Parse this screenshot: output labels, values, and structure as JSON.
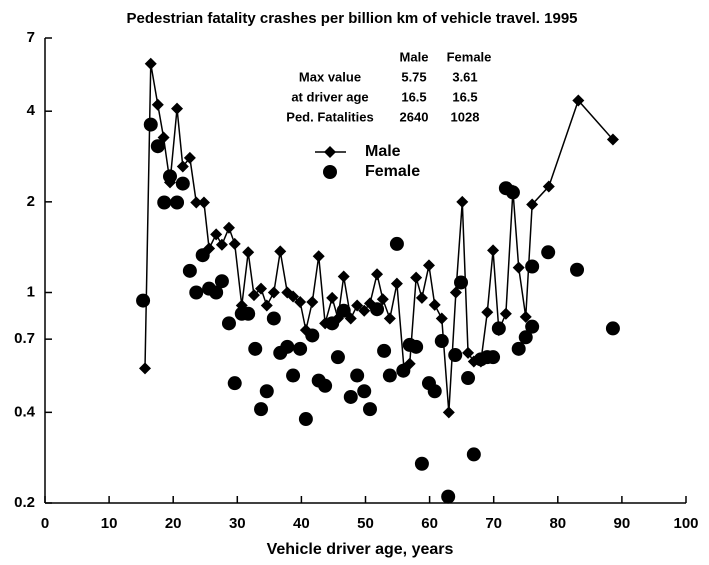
{
  "chart_data": {
    "type": "line",
    "title": "Pedestrian fatality crashes per billion km of vehicle travel.  1995",
    "xlabel": "Vehicle driver age, years",
    "xlim": [
      0,
      100
    ],
    "xticks": [
      0,
      10,
      20,
      30,
      40,
      50,
      60,
      70,
      80,
      90,
      100
    ],
    "ylim": [
      0.2,
      7
    ],
    "yticks": [
      0.2,
      0.4,
      0.7,
      1,
      2,
      4,
      7
    ],
    "ylog": true,
    "series": [
      {
        "name": "Male",
        "color": "#000000",
        "marker": "diamond",
        "line": true,
        "x": [
          15.6,
          16.5,
          17.6,
          18.5,
          19.5,
          20.6,
          21.5,
          22.6,
          23.6,
          24.8,
          25.6,
          26.7,
          27.6,
          28.7,
          29.6,
          30.7,
          31.7,
          32.6,
          33.7,
          34.6,
          35.7,
          36.7,
          37.8,
          38.7,
          39.8,
          40.7,
          41.7,
          42.7,
          43.7,
          44.8,
          45.7,
          46.6,
          47.7,
          48.7,
          49.8,
          50.7,
          51.8,
          52.7,
          53.8,
          54.9,
          56.0,
          56.9,
          57.9,
          58.8,
          59.9,
          60.8,
          61.9,
          63.0,
          64.1,
          65.1,
          66.0,
          66.9,
          68.0,
          69.0,
          69.9,
          70.8,
          71.9,
          73.0,
          73.9,
          75.0,
          76.0,
          78.6,
          83.2,
          88.6
        ],
        "values": [
          0.56,
          5.75,
          4.2,
          3.27,
          2.32,
          4.08,
          2.62,
          2.8,
          1.99,
          1.99,
          1.4,
          1.56,
          1.44,
          1.64,
          1.45,
          0.905,
          1.36,
          0.98,
          1.03,
          0.905,
          1.0,
          1.37,
          1.0,
          0.97,
          0.93,
          0.75,
          0.93,
          1.32,
          0.79,
          0.96,
          0.82,
          1.13,
          0.82,
          0.905,
          0.87,
          0.92,
          1.15,
          0.95,
          0.82,
          1.07,
          0.56,
          0.58,
          1.12,
          0.96,
          1.23,
          0.91,
          0.82,
          0.4,
          1.0,
          2.0,
          0.63,
          0.59,
          0.59,
          0.86,
          1.38,
          0.75,
          0.85,
          2.18,
          1.21,
          0.83,
          1.96,
          2.25,
          4.34,
          3.22
        ]
      },
      {
        "name": "Female",
        "color": "#000000",
        "marker": "circle",
        "line": false,
        "x": [
          15.3,
          16.5,
          17.6,
          18.6,
          19.5,
          20.6,
          21.5,
          22.6,
          23.6,
          24.6,
          25.6,
          26.7,
          27.6,
          28.7,
          29.6,
          30.7,
          31.7,
          32.8,
          33.7,
          34.6,
          35.7,
          36.7,
          37.8,
          38.7,
          39.8,
          40.7,
          41.7,
          42.7,
          43.7,
          44.8,
          45.7,
          46.6,
          47.7,
          48.7,
          49.8,
          50.7,
          51.8,
          52.9,
          53.8,
          54.9,
          55.9,
          56.9,
          57.9,
          58.8,
          59.9,
          60.8,
          61.9,
          62.9,
          64.0,
          64.9,
          66.0,
          66.9,
          68.0,
          69.0,
          69.9,
          70.8,
          71.9,
          73.0,
          73.9,
          75.0,
          76.0,
          76.0,
          78.5,
          83.0,
          88.6
        ],
        "values": [
          0.94,
          3.61,
          3.06,
          1.99,
          2.43,
          1.99,
          2.3,
          1.18,
          1.0,
          1.33,
          1.03,
          1.0,
          1.09,
          0.79,
          0.5,
          0.85,
          0.85,
          0.65,
          0.41,
          0.47,
          0.82,
          0.63,
          0.66,
          0.53,
          0.65,
          0.38,
          0.72,
          0.51,
          0.49,
          0.79,
          0.61,
          0.87,
          0.45,
          0.53,
          0.47,
          0.41,
          0.88,
          0.64,
          0.53,
          1.45,
          0.55,
          0.67,
          0.66,
          0.27,
          0.5,
          0.47,
          0.69,
          0.21,
          0.62,
          1.08,
          0.52,
          0.29,
          0.6,
          0.61,
          0.61,
          0.76,
          2.22,
          2.15,
          0.65,
          0.71,
          0.77,
          1.22,
          1.36,
          1.19,
          0.76
        ]
      }
    ],
    "annotation_table": {
      "header": [
        "Male",
        "Female"
      ],
      "rows": [
        {
          "label": "Max value",
          "values": [
            5.75,
            3.61
          ]
        },
        {
          "label": "at driver age",
          "values": [
            16.5,
            16.5
          ]
        },
        {
          "label": "Ped. Fatalities",
          "values": [
            2640,
            1028
          ]
        }
      ]
    }
  }
}
